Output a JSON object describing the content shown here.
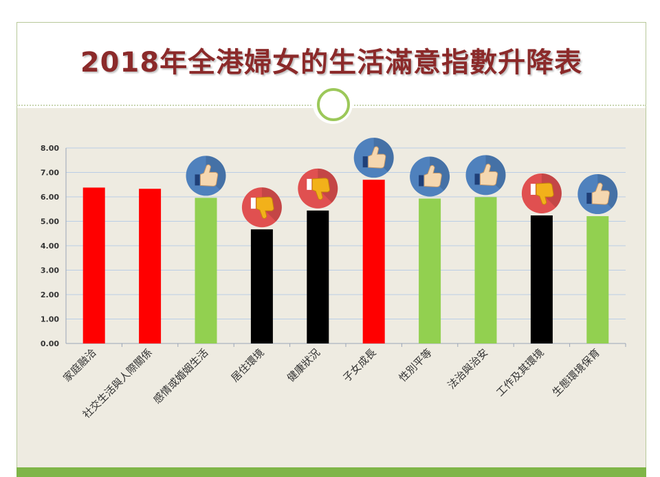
{
  "colors": {
    "title": "#8b2a2a",
    "bar_red": "#ff0000",
    "bar_green": "#92d050",
    "bar_black": "#000000",
    "like_badge": "#4f81bd",
    "dislike_badge": "#e05050",
    "grid": "#b9cde5",
    "footer": "#7fb548"
  },
  "chart_data": {
    "type": "bar",
    "title": "2018年全港婦女的生活滿意指數升降表",
    "ylim": [
      0,
      8
    ],
    "yticks": [
      "0.00",
      "1.00",
      "2.00",
      "3.00",
      "4.00",
      "5.00",
      "6.00",
      "7.00",
      "8.00"
    ],
    "grid": true,
    "categories": [
      "家庭融洽",
      "社交生活與人際關係",
      "感情或婚姻生活",
      "居住環境",
      "健康狀況",
      "子女成長",
      "性別平等",
      "法治與治安",
      "工作及其環境",
      "生態環境保育"
    ],
    "values": [
      6.38,
      6.33,
      5.96,
      4.67,
      5.44,
      6.7,
      5.93,
      5.99,
      5.24,
      5.21
    ],
    "bar_colors": [
      "red",
      "red",
      "green",
      "black",
      "black",
      "red",
      "green",
      "green",
      "black",
      "green"
    ],
    "indicators": [
      null,
      null,
      "thumbs-up",
      "thumbs-down",
      "thumbs-down",
      "thumbs-up",
      "thumbs-up",
      "thumbs-up",
      "thumbs-down",
      "thumbs-up"
    ]
  }
}
